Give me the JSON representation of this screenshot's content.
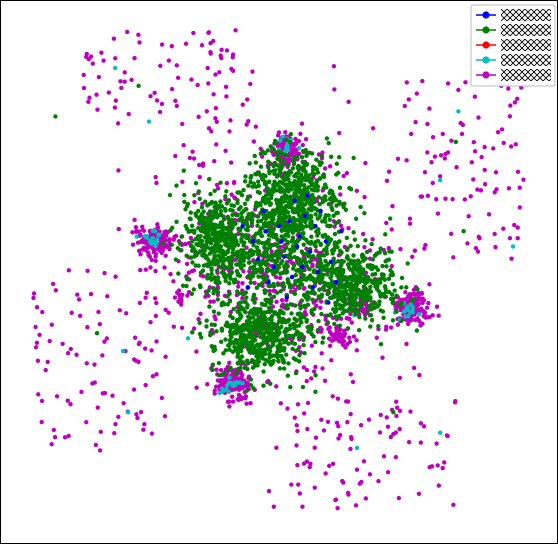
{
  "chart_data": {
    "type": "scatter",
    "title": "",
    "xlabel": "",
    "ylabel": "",
    "xlim": [
      -1,
      1
    ],
    "ylim": [
      -1,
      1
    ],
    "axes_visible": false,
    "grid": false,
    "legend_placement": "top-right",
    "legend_labels_rendered_as_hatching": true,
    "series": [
      {
        "color": "#0000ff",
        "points": [
          [
            0.04,
            0.2
          ],
          [
            0.08,
            0.14
          ],
          [
            -0.05,
            0.16
          ],
          [
            0.12,
            0.08
          ],
          [
            0.02,
            0.06
          ],
          [
            -0.08,
            0.05
          ],
          [
            0.1,
            0.22
          ],
          [
            0.18,
            0.12
          ],
          [
            0.05,
            -0.02
          ],
          [
            -0.02,
            0.02
          ],
          [
            0.14,
            0.18
          ],
          [
            0.06,
            0.28
          ],
          [
            -0.1,
            0.12
          ],
          [
            0.2,
            0.04
          ],
          [
            0.01,
            0.12
          ],
          [
            0.09,
            0.02
          ],
          [
            0.13,
            -0.06
          ],
          [
            -0.04,
            -0.04
          ],
          [
            0.07,
            0.1
          ],
          [
            0.16,
            0.24
          ],
          [
            -0.12,
            -0.06
          ],
          [
            0.22,
            -0.04
          ],
          [
            0.03,
            -0.1
          ],
          [
            -0.06,
            0.24
          ],
          [
            0.24,
            0.16
          ],
          [
            0.11,
            0.3
          ],
          [
            0.0,
            0.18
          ],
          [
            0.15,
            0.0
          ],
          [
            -0.14,
            0.18
          ],
          [
            0.19,
            -0.12
          ]
        ]
      },
      {
        "color": "#008000",
        "clusters": [
          {
            "cx": 0.05,
            "cy": 0.3,
            "rx": 0.15,
            "ry": 0.16,
            "n": 520
          },
          {
            "cx": -0.23,
            "cy": 0.12,
            "rx": 0.13,
            "ry": 0.18,
            "n": 460
          },
          {
            "cx": 0.28,
            "cy": -0.05,
            "rx": 0.16,
            "ry": 0.12,
            "n": 460
          },
          {
            "cx": -0.08,
            "cy": -0.25,
            "rx": 0.17,
            "ry": 0.14,
            "n": 480
          },
          {
            "cx": 0.03,
            "cy": 0.05,
            "rx": 0.22,
            "ry": 0.22,
            "n": 420
          }
        ],
        "outliers": [
          [
            -0.86,
            0.61
          ],
          [
            -0.54,
            0.73
          ],
          [
            0.68,
            0.51
          ],
          [
            0.71,
            0.16
          ],
          [
            -0.7,
            -0.24
          ],
          [
            0.44,
            -0.55
          ],
          [
            0.14,
            -0.47
          ]
        ]
      },
      {
        "color": "#ff0000",
        "points": []
      },
      {
        "color": "#00bfbf",
        "clusters": [
          {
            "cx": 0.03,
            "cy": 0.5,
            "rx": 0.04,
            "ry": 0.03,
            "n": 14
          },
          {
            "cx": -0.49,
            "cy": 0.13,
            "rx": 0.04,
            "ry": 0.03,
            "n": 16
          },
          {
            "cx": 0.5,
            "cy": -0.15,
            "rx": 0.04,
            "ry": 0.03,
            "n": 16
          },
          {
            "cx": -0.18,
            "cy": -0.45,
            "rx": 0.04,
            "ry": 0.04,
            "n": 16
          }
        ],
        "outliers": [
          [
            -0.63,
            0.8
          ],
          [
            -0.5,
            0.59
          ],
          [
            0.69,
            0.63
          ],
          [
            0.62,
            0.36
          ],
          [
            0.9,
            0.1
          ],
          [
            -0.6,
            -0.31
          ],
          [
            -0.58,
            -0.55
          ],
          [
            0.62,
            -0.63
          ],
          [
            0.3,
            -0.69
          ],
          [
            0.29,
            -0.17
          ],
          [
            -0.35,
            -0.26
          ]
        ]
      },
      {
        "color": "#bf00bf",
        "clusters": [
          {
            "cx": 0.03,
            "cy": 0.48,
            "rx": 0.06,
            "ry": 0.06,
            "n": 120
          },
          {
            "cx": -0.48,
            "cy": 0.12,
            "rx": 0.07,
            "ry": 0.05,
            "n": 140
          },
          {
            "cx": 0.51,
            "cy": -0.14,
            "rx": 0.06,
            "ry": 0.06,
            "n": 150
          },
          {
            "cx": -0.18,
            "cy": -0.44,
            "rx": 0.06,
            "ry": 0.06,
            "n": 150
          },
          {
            "cx": 0.23,
            "cy": -0.25,
            "rx": 0.04,
            "ry": 0.03,
            "n": 40
          },
          {
            "cx": 0.32,
            "cy": -0.14,
            "rx": 0.03,
            "ry": 0.03,
            "n": 30
          },
          {
            "cx": -0.38,
            "cy": -0.1,
            "rx": 0.02,
            "ry": 0.02,
            "n": 18
          },
          {
            "cx": 0.0,
            "cy": 0.01,
            "rx": 0.46,
            "ry": 0.48,
            "n": 520
          }
        ],
        "outer_regions": [
          {
            "x": [
              -0.76,
              -0.1
            ],
            "y": [
              0.56,
              0.95
            ],
            "n": 80
          },
          {
            "x": [
              0.48,
              0.96
            ],
            "y": [
              0.05,
              0.75
            ],
            "n": 90
          },
          {
            "x": [
              -0.95,
              -0.45
            ],
            "y": [
              -0.7,
              0.02
            ],
            "n": 90
          },
          {
            "x": [
              -0.05,
              0.68
            ],
            "y": [
              -0.93,
              -0.5
            ],
            "n": 85
          }
        ]
      }
    ]
  }
}
